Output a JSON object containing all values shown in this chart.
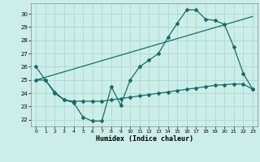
{
  "xlabel": "Humidex (Indice chaleur)",
  "background_color": "#cceee8",
  "grid_color": "#aad8d0",
  "line_color": "#1a6b6b",
  "xlim": [
    -0.5,
    23.5
  ],
  "ylim": [
    21.5,
    30.8
  ],
  "xticks": [
    0,
    1,
    2,
    3,
    4,
    5,
    6,
    7,
    8,
    9,
    10,
    11,
    12,
    13,
    14,
    15,
    16,
    17,
    18,
    19,
    20,
    21,
    22,
    23
  ],
  "yticks": [
    22,
    23,
    24,
    25,
    26,
    27,
    28,
    29,
    30
  ],
  "line1_x": [
    0,
    1,
    2,
    3,
    4,
    5,
    6,
    7,
    8,
    9,
    10,
    11,
    12,
    13,
    14,
    15,
    16,
    17,
    18,
    19,
    20,
    21,
    22,
    23
  ],
  "line1_y": [
    26.0,
    25.0,
    24.1,
    23.5,
    23.3,
    22.2,
    21.9,
    21.9,
    24.5,
    23.1,
    25.0,
    26.0,
    26.5,
    27.0,
    28.2,
    29.3,
    30.3,
    30.3,
    29.6,
    29.5,
    29.2,
    27.5,
    25.5,
    24.3
  ],
  "line2_x": [
    0,
    1,
    2,
    3,
    4,
    5,
    6,
    7,
    8,
    9,
    10,
    11,
    12,
    13,
    14,
    15,
    16,
    17,
    18,
    19,
    20,
    21,
    22,
    23
  ],
  "line2_y": [
    25.0,
    25.0,
    24.0,
    23.5,
    23.4,
    23.4,
    23.4,
    23.4,
    23.5,
    23.6,
    23.7,
    23.8,
    23.9,
    24.0,
    24.1,
    24.2,
    24.3,
    24.4,
    24.5,
    24.6,
    24.65,
    24.7,
    24.7,
    24.3
  ],
  "line3_x": [
    0,
    23
  ],
  "line3_y": [
    25.0,
    29.8
  ]
}
